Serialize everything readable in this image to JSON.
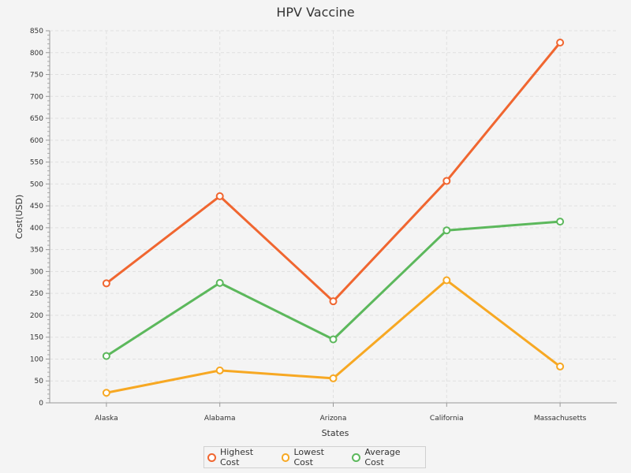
{
  "chart_data": {
    "type": "line",
    "title": "HPV Vaccine",
    "xlabel": "States",
    "ylabel": "Cost(USD)",
    "categories": [
      "Alaska",
      "Alabama",
      "Arizona",
      "California",
      "Massachusetts"
    ],
    "ylim": [
      0,
      850
    ],
    "ytick_step": 50,
    "grid": true,
    "legend_position": "bottom",
    "series": [
      {
        "name": "Highest Cost",
        "color": "#f06630",
        "values": [
          273,
          472,
          232,
          507,
          823
        ]
      },
      {
        "name": "Lowest Cost",
        "color": "#f7a823",
        "values": [
          23,
          74,
          56,
          280,
          83
        ]
      },
      {
        "name": "Average Cost",
        "color": "#5cb85c",
        "values": [
          107,
          274,
          145,
          394,
          414
        ]
      }
    ]
  }
}
